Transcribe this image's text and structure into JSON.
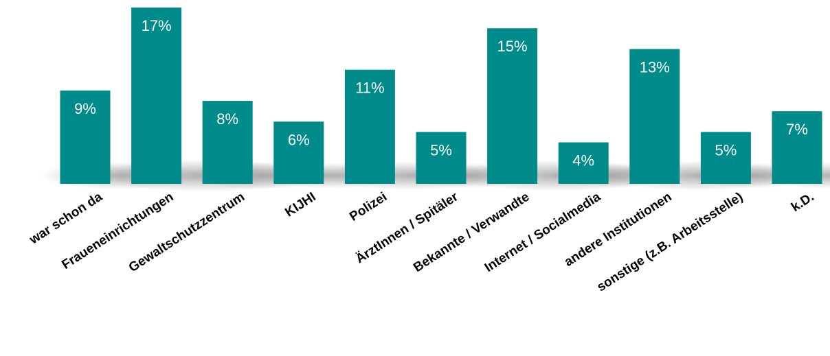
{
  "chart_data": {
    "type": "bar",
    "title": "",
    "xlabel": "",
    "ylabel": "",
    "ylim": [
      0,
      17
    ],
    "grid": false,
    "legend": "none",
    "bar_color": "#008B8B",
    "label_color": "#ffffff",
    "categories": [
      "war schon da",
      "Fraueneinrichtungen",
      "Gewaltschutzzentrum",
      "KIJHI",
      "Polizei",
      "ÄrztInnen / Spitäler",
      "Bekannte / Verwandte",
      "Internet / Socialmedia",
      "andere Institutionen",
      "sonstige (z.B. Arbeitsstelle)",
      "k.D."
    ],
    "values": [
      9,
      17,
      8,
      6,
      11,
      5,
      15,
      4,
      13,
      5,
      7
    ],
    "value_labels": [
      "9%",
      "17%",
      "8%",
      "6%",
      "11%",
      "5%",
      "15%",
      "4%",
      "13%",
      "5%",
      "7%"
    ]
  }
}
